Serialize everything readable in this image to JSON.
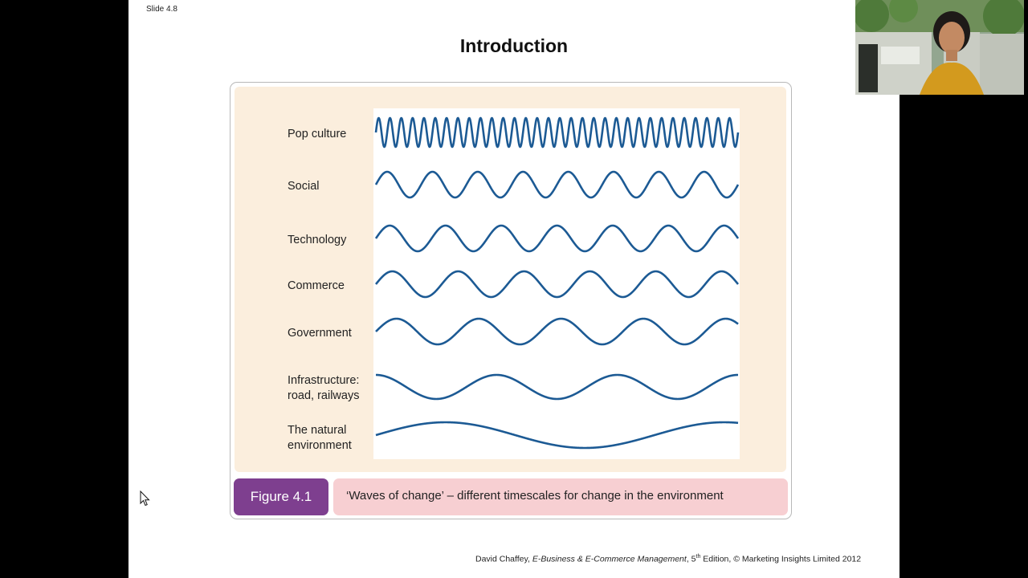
{
  "slide": {
    "number": "Slide 4.8",
    "title": "Introduction"
  },
  "figure": {
    "waves": [
      {
        "label_lines": [
          "Pop culture"
        ],
        "cycles": 32,
        "amplitude": 18,
        "phase": "sine"
      },
      {
        "label_lines": [
          "Social"
        ],
        "cycles": 8,
        "amplitude": 16,
        "phase": "sine"
      },
      {
        "label_lines": [
          "Technology"
        ],
        "cycles": 6.5,
        "amplitude": 16,
        "phase": "sine"
      },
      {
        "label_lines": [
          "Commerce"
        ],
        "cycles": 5.5,
        "amplitude": 16,
        "phase": "sine"
      },
      {
        "label_lines": [
          "Government"
        ],
        "cycles": 4.4,
        "amplitude": 16,
        "phase": "sine"
      },
      {
        "label_lines": [
          "Infrastructure:",
          "road, railways"
        ],
        "cycles": 3,
        "amplitude": 15,
        "phase": "cosine"
      },
      {
        "label_lines": [
          "The natural",
          "environment"
        ],
        "cycles": 1.3,
        "amplitude": 16,
        "phase": "sine"
      }
    ],
    "caption_tag": "Figure 4.1",
    "caption_text": "‘Waves of change’ – different timescales for change in the environment"
  },
  "footer": {
    "author": "David Chaffey, ",
    "book": "E-Business & E-Commerce Management",
    "edition_pre": ", 5",
    "edition_sup": "th",
    "edition_post": " Edition, © Marketing Insights Limited 2012"
  },
  "colors": {
    "wave": "#1c5a94",
    "figure_background": "#fbeedd",
    "caption_tag": "#7e3f8f",
    "caption_text_bg": "#f7cfd2"
  },
  "icons": {
    "cursor": "arrow-cursor-icon",
    "presenter": "presenter-webcam"
  }
}
